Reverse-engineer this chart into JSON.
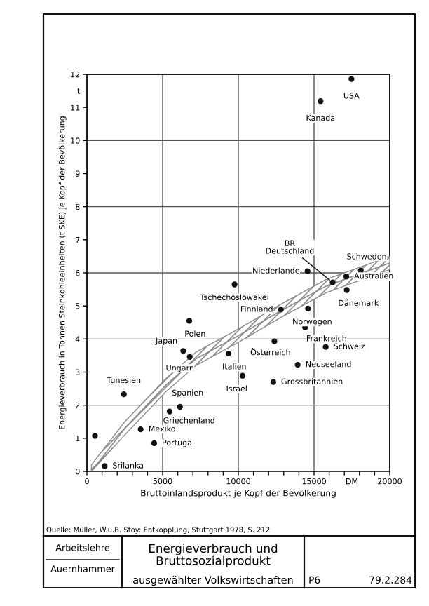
{
  "chart_data": {
    "type": "scatter",
    "title": "Energieverbrauch und\nBruttosozialprodukt",
    "subtitle": "ausgewählter Volkswirtschaften",
    "xlabel": "Bruttoinlandsprodukt je Kopf der Bevölkerung",
    "ylabel": "Energieverbrauch in Tonnen Steinkohleeinheiten (t SKE) je Kopf der Bevölkerung",
    "xlim": [
      0,
      20000
    ],
    "ylim": [
      0,
      12
    ],
    "xticks": [
      0,
      {
        "value": 1000,
        "label": null
      },
      {
        "value": 2000,
        "label": null
      },
      {
        "value": 3000,
        "label": null
      },
      {
        "value": 4000,
        "label": null
      },
      5000,
      {
        "value": 6000,
        "label": null
      },
      {
        "value": 7000,
        "label": null
      },
      {
        "value": 8000,
        "label": null
      },
      {
        "value": 9000,
        "label": null
      },
      10000,
      {
        "value": 11000,
        "label": null
      },
      {
        "value": 12000,
        "label": null
      },
      {
        "value": 13000,
        "label": null
      },
      {
        "value": 14000,
        "label": null
      },
      15000,
      {
        "value": 16000,
        "label": null
      },
      {
        "value": 17000,
        "label": null
      },
      {
        "value": 18000,
        "label": null
      },
      {
        "value": 19000,
        "label": null
      },
      20000,
      {
        "value": 17500,
        "label": "DM"
      }
    ],
    "yticks": [
      0,
      1,
      2,
      3,
      4,
      5,
      6,
      7,
      8,
      9,
      10,
      11,
      12,
      {
        "value": 11.5,
        "label": "t"
      }
    ],
    "grid": true,
    "series": [
      {
        "marker": "circle",
        "color": "#111111",
        "x": [
          17470,
          15430,
          18090,
          17130,
          16230,
          17160,
          14570,
          9750,
          12810,
          14600,
          14410,
          15770,
          12380,
          6760,
          6360,
          6790,
          9350,
          13920,
          10280,
          12310,
          2440,
          6140,
          5460,
          3550,
          4440,
          1170,
          530
        ],
        "values": [
          11.86,
          11.19,
          6.07,
          5.89,
          5.71,
          5.48,
          6.05,
          5.65,
          4.89,
          4.92,
          4.35,
          3.76,
          3.93,
          4.55,
          3.64,
          3.46,
          3.56,
          3.22,
          2.89,
          2.7,
          2.33,
          1.95,
          1.81,
          1.27,
          0.85,
          0.16,
          1.07
        ]
      },
      {
        "type": "line",
        "color": "#8a8a8a",
        "x": [
          300,
          2500,
          5200,
          7200,
          10000,
          12800,
          15800,
          20000
        ],
        "values": [
          0,
          1.3,
          2.6,
          3.4,
          4.1,
          4.85,
          5.6,
          6.3
        ],
        "lower": [
          0,
          1.1,
          2.4,
          3.2,
          3.9,
          4.65,
          5.4,
          6.1
        ],
        "upper": [
          0.2,
          1.5,
          2.8,
          3.6,
          4.3,
          5.05,
          5.8,
          6.5
        ]
      }
    ],
    "annotations": [
      {
        "text": "USA",
        "x": 17470,
        "y": 11.86
      },
      {
        "text": "Kanada",
        "x": 15430,
        "y": 11.19
      },
      {
        "text": "Schweden",
        "x": 18090,
        "y": 6.07
      },
      {
        "text": "Australien",
        "x": 17130,
        "y": 5.89
      },
      {
        "text": "BR\nDeutschland",
        "x": 16230,
        "y": 5.71
      },
      {
        "text": "Dänemark",
        "x": 17160,
        "y": 5.48
      },
      {
        "text": "Niederlande",
        "x": 14570,
        "y": 6.05
      },
      {
        "text": "Tschechoslowakei",
        "x": 9750,
        "y": 5.65
      },
      {
        "text": "Finnland",
        "x": 12810,
        "y": 4.89
      },
      {
        "text": "Norwegen",
        "x": 14600,
        "y": 4.92
      },
      {
        "text": "Frankreich",
        "x": 14410,
        "y": 4.35
      },
      {
        "text": "Schweiz",
        "x": 15770,
        "y": 3.76
      },
      {
        "text": "Österreich",
        "x": 12380,
        "y": 3.93
      },
      {
        "text": "Polen",
        "x": 6760,
        "y": 4.55
      },
      {
        "text": "Japan",
        "x": 6360,
        "y": 3.64
      },
      {
        "text": "Ungarn",
        "x": 6790,
        "y": 3.46
      },
      {
        "text": "Italien",
        "x": 9350,
        "y": 3.56
      },
      {
        "text": "Neuseeland",
        "x": 13920,
        "y": 3.22
      },
      {
        "text": "Israel",
        "x": 10280,
        "y": 2.89
      },
      {
        "text": "Grossbritannien",
        "x": 12310,
        "y": 2.7
      },
      {
        "text": "Tunesien",
        "x": 2440,
        "y": 2.33
      },
      {
        "text": "Spanien",
        "x": 6140,
        "y": 1.95
      },
      {
        "text": "Griechenland",
        "x": 5460,
        "y": 1.81
      },
      {
        "text": "Mexiko",
        "x": 3550,
        "y": 1.27
      },
      {
        "text": "Portugal",
        "x": 4440,
        "y": 0.85
      },
      {
        "text": "Srilanka",
        "x": 1170,
        "y": 0.16
      },
      "Quelle: Müller, W.u.B. Stoy: Entkopplung, Stuttgart 1978, S. 212",
      "Arbeitslehre",
      "Auernhammer",
      "P6",
      "79.2.284"
    ]
  }
}
